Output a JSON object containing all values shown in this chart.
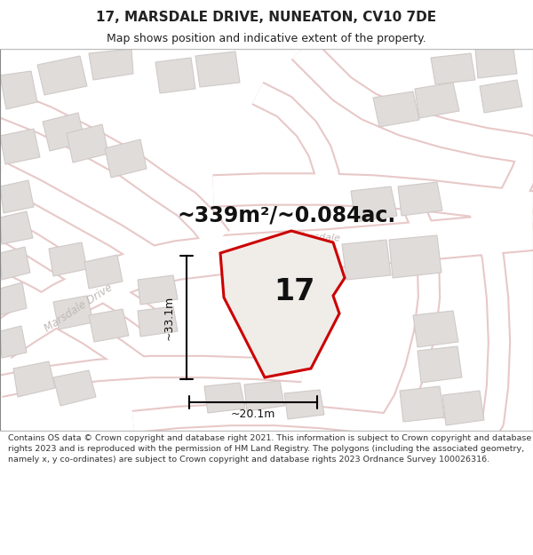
{
  "title": "17, MARSDALE DRIVE, NUNEATON, CV10 7DE",
  "subtitle": "Map shows position and indicative extent of the property.",
  "area_text": "~339m²/~0.084ac.",
  "dim_horizontal": "~20.1m",
  "dim_vertical": "~33.1m",
  "property_number": "17",
  "footer_text": "Contains OS data © Crown copyright and database right 2021. This information is subject to Crown copyright and database rights 2023 and is reproduced with the permission of HM Land Registry. The polygons (including the associated geometry, namely x, y co-ordinates) are subject to Crown copyright and database rights 2023 Ordnance Survey 100026316.",
  "bg_color": "#f7f4f2",
  "road_fill": "#ffffff",
  "road_edge": "#e8c8c8",
  "building_fill": "#e0dcda",
  "building_edge": "#d0cac8",
  "property_fill": "#f0ece8",
  "property_edge": "#cc0000",
  "road_label_color": "#c0b8b4",
  "title_color": "#222222",
  "footer_color": "#333333",
  "dim_color": "#111111",
  "map_border": "#888888",
  "title_fontsize": 11,
  "subtitle_fontsize": 9,
  "area_fontsize": 17,
  "dim_fontsize": 9,
  "num_fontsize": 24,
  "footer_fontsize": 6.8
}
